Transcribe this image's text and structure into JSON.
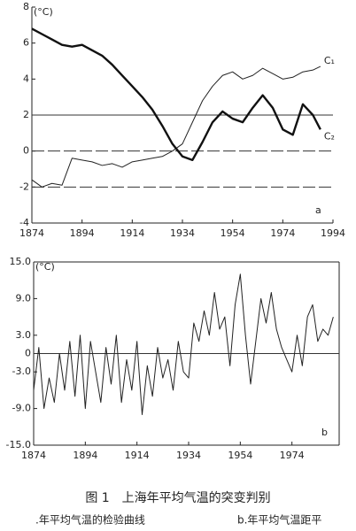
{
  "chart_data": [
    {
      "type": "line",
      "y_label": "(°C)",
      "panel_label": "a",
      "frame": "axes",
      "xlim": [
        1874,
        1994
      ],
      "xticks": [
        1874,
        1894,
        1914,
        1934,
        1954,
        1974,
        1994
      ],
      "ylim": [
        -4,
        8
      ],
      "yticks": [
        -4,
        -2,
        0,
        2,
        4,
        6,
        8
      ],
      "reference_lines": [
        {
          "value": 2,
          "style": "solid"
        },
        {
          "value": 0,
          "style": "dashed"
        },
        {
          "value": -2,
          "style": "dashed"
        }
      ],
      "x": [
        1874,
        1878,
        1882,
        1886,
        1890,
        1894,
        1898,
        1902,
        1906,
        1910,
        1914,
        1918,
        1922,
        1926,
        1930,
        1934,
        1938,
        1942,
        1946,
        1950,
        1954,
        1958,
        1962,
        1966,
        1970,
        1974,
        1978,
        1982,
        1986,
        1989
      ],
      "series": [
        {
          "name": "C₁",
          "color": "#222",
          "width": 1,
          "values": [
            -1.6,
            -2.0,
            -1.8,
            -1.9,
            -0.4,
            -0.5,
            -0.6,
            -0.8,
            -0.7,
            -0.9,
            -0.6,
            -0.5,
            -0.4,
            -0.3,
            0.0,
            0.4,
            1.6,
            2.8,
            3.6,
            4.2,
            4.4,
            4.0,
            4.2,
            4.6,
            4.3,
            4.0,
            4.1,
            4.4,
            4.5,
            4.7
          ]
        },
        {
          "name": "C₂",
          "color": "#111",
          "width": 2.4,
          "values": [
            6.8,
            6.5,
            6.2,
            5.9,
            5.8,
            5.9,
            5.6,
            5.3,
            4.8,
            4.2,
            3.6,
            3.0,
            2.3,
            1.4,
            0.4,
            -0.3,
            -0.5,
            0.5,
            1.6,
            2.2,
            1.8,
            1.6,
            2.4,
            3.1,
            2.4,
            1.2,
            0.9,
            2.6,
            2.0,
            1.2
          ]
        }
      ]
    },
    {
      "type": "line",
      "y_label": "(°C)",
      "panel_label": "b",
      "frame": "box",
      "xlim": [
        1874,
        1994
      ],
      "xticks": [
        1874,
        1894,
        1914,
        1934,
        1954,
        1974
      ],
      "ylim": [
        -15,
        15
      ],
      "yticks": [
        {
          "value": 15,
          "label": "15.0"
        },
        {
          "value": 9,
          "label": "9.0"
        },
        {
          "value": 3,
          "label": "3.0"
        },
        0,
        {
          "value": -3,
          "label": "-3.0"
        },
        {
          "value": -9,
          "label": "-9.0"
        },
        {
          "value": -15,
          "label": "-15.0"
        }
      ],
      "reference_lines": [
        {
          "value": 0,
          "style": "solid"
        }
      ],
      "x": [
        1874,
        1876,
        1878,
        1880,
        1882,
        1884,
        1886,
        1888,
        1890,
        1892,
        1894,
        1896,
        1898,
        1900,
        1902,
        1904,
        1906,
        1908,
        1910,
        1912,
        1914,
        1916,
        1918,
        1920,
        1922,
        1924,
        1926,
        1928,
        1930,
        1932,
        1934,
        1936,
        1938,
        1940,
        1942,
        1944,
        1946,
        1948,
        1950,
        1952,
        1954,
        1956,
        1958,
        1960,
        1962,
        1964,
        1966,
        1968,
        1970,
        1972,
        1974,
        1976,
        1978,
        1980,
        1982,
        1984,
        1986,
        1988,
        1990
      ],
      "series": [
        {
          "color": "#222",
          "width": 1,
          "values": [
            -6,
            1,
            -9,
            -4,
            -8,
            0,
            -6,
            2,
            -7,
            3,
            -9,
            2,
            -3,
            -8,
            1,
            -5,
            3,
            -8,
            -1,
            -6,
            2,
            -10,
            -2,
            -7,
            1,
            -4,
            -1,
            -6,
            2,
            -3,
            -4,
            5,
            2,
            7,
            3,
            10,
            4,
            6,
            -2,
            8,
            13,
            3,
            -5,
            2,
            9,
            5,
            10,
            4,
            1,
            -1,
            -3,
            3,
            -2,
            6,
            8,
            2,
            4,
            3,
            6
          ]
        }
      ]
    }
  ],
  "figure": {
    "caption": "图 1　上海年平均气温的突变判别",
    "subcaption_a": ".年平均气温的检验曲线",
    "subcaption_b": "b.年平均气温距平"
  }
}
